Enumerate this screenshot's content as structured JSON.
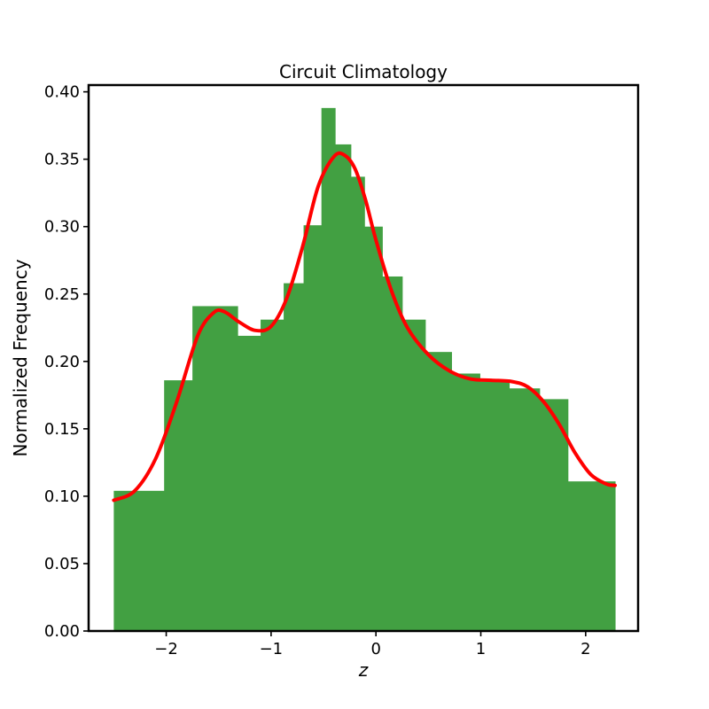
{
  "chart_data": {
    "type": "bar",
    "title": "Circuit Climatology",
    "xlabel": "z",
    "ylabel": "Normalized Frequency",
    "xlim": [
      -2.74,
      2.5
    ],
    "ylim": [
      0,
      0.405
    ],
    "xticks": [
      -2,
      -1,
      0,
      1,
      2
    ],
    "xtick_labels": [
      "−2",
      "−1",
      "0",
      "1",
      "2"
    ],
    "yticks": [
      0.0,
      0.05,
      0.1,
      0.15,
      0.2,
      0.25,
      0.3,
      0.35,
      0.4
    ],
    "ytick_labels": [
      "0.00",
      "0.05",
      "0.10",
      "0.15",
      "0.20",
      "0.25",
      "0.30",
      "0.35",
      "0.40"
    ],
    "grid": false,
    "bars": [
      {
        "x0": -2.5,
        "x1": -2.02,
        "value": 0.104
      },
      {
        "x0": -2.02,
        "x1": -1.75,
        "value": 0.186
      },
      {
        "x0": -1.75,
        "x1": -1.32,
        "value": 0.241
      },
      {
        "x0": -1.32,
        "x1": -1.1,
        "value": 0.219
      },
      {
        "x0": -1.1,
        "x1": -0.88,
        "value": 0.231
      },
      {
        "x0": -0.88,
        "x1": -0.69,
        "value": 0.258
      },
      {
        "x0": -0.69,
        "x1": -0.52,
        "value": 0.301
      },
      {
        "x0": -0.52,
        "x1": -0.39,
        "value": 0.388
      },
      {
        "x0": -0.39,
        "x1": -0.24,
        "value": 0.361
      },
      {
        "x0": -0.24,
        "x1": -0.11,
        "value": 0.337
      },
      {
        "x0": -0.11,
        "x1": 0.06,
        "value": 0.3
      },
      {
        "x0": 0.06,
        "x1": 0.25,
        "value": 0.263
      },
      {
        "x0": 0.25,
        "x1": 0.47,
        "value": 0.231
      },
      {
        "x0": 0.47,
        "x1": 0.72,
        "value": 0.207
      },
      {
        "x0": 0.72,
        "x1": 0.99,
        "value": 0.191
      },
      {
        "x0": 0.99,
        "x1": 1.27,
        "value": 0.185
      },
      {
        "x0": 1.27,
        "x1": 1.56,
        "value": 0.18
      },
      {
        "x0": 1.56,
        "x1": 1.83,
        "value": 0.172
      },
      {
        "x0": 1.83,
        "x1": 2.28,
        "value": 0.111
      }
    ],
    "curve": {
      "x": [
        -2.5,
        -2.3,
        -2.1,
        -1.9,
        -1.7,
        -1.55,
        -1.45,
        -1.3,
        -1.15,
        -1.0,
        -0.85,
        -0.7,
        -0.55,
        -0.4,
        -0.3,
        -0.2,
        -0.1,
        0.0,
        0.15,
        0.3,
        0.5,
        0.7,
        0.9,
        1.1,
        1.3,
        1.45,
        1.6,
        1.75,
        1.9,
        2.05,
        2.2,
        2.28
      ],
      "y": [
        0.097,
        0.104,
        0.128,
        0.17,
        0.219,
        0.236,
        0.237,
        0.229,
        0.223,
        0.226,
        0.247,
        0.285,
        0.33,
        0.352,
        0.353,
        0.343,
        0.32,
        0.29,
        0.252,
        0.225,
        0.205,
        0.193,
        0.187,
        0.186,
        0.185,
        0.181,
        0.17,
        0.153,
        0.132,
        0.116,
        0.109,
        0.108
      ]
    },
    "colors": {
      "bars": "#42a042",
      "curve": "#ff0000",
      "axes": "#000000"
    }
  }
}
